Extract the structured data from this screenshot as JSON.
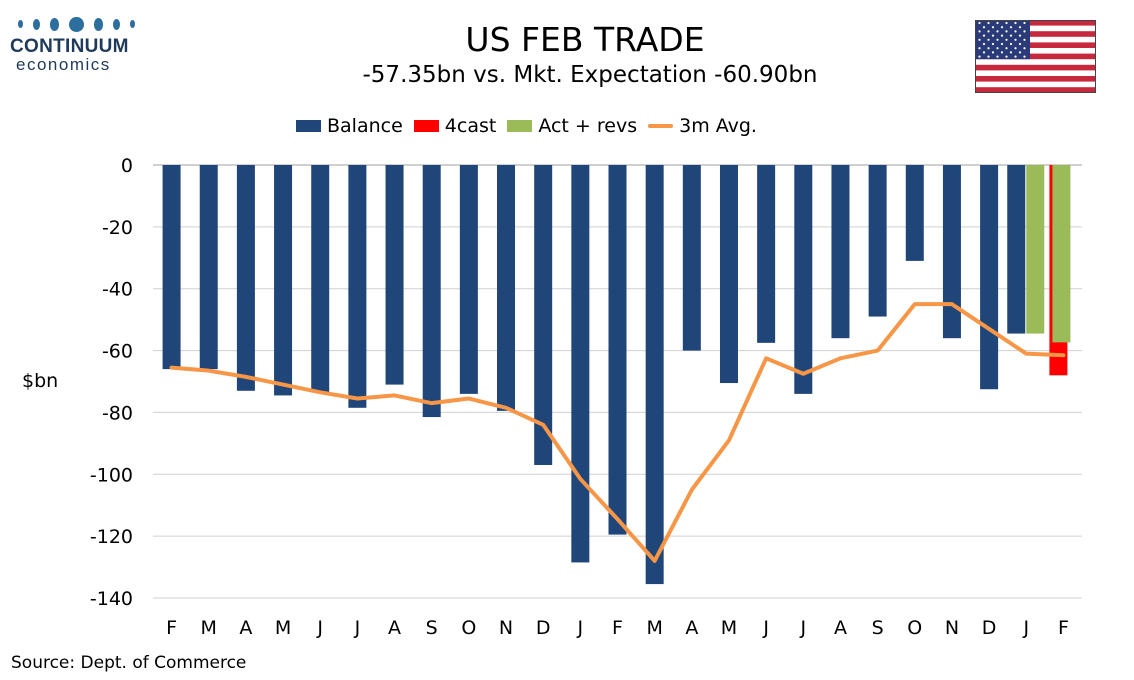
{
  "logo": {
    "name": "CONTINUUM",
    "sub": "economics"
  },
  "header": {
    "title": "US FEB TRADE",
    "subtitle": "-57.35bn vs. Mkt. Expectation -60.90bn"
  },
  "source": "Source: Dept. of Commerce",
  "colors": {
    "balance": "#1f4579",
    "forecast": "#ff0000",
    "actual_revs": "#9bbb59",
    "avg": "#f79646",
    "grid": "#d0d0d0"
  },
  "chart_data": {
    "type": "bar",
    "title": "US FEB TRADE",
    "subtitle": "-57.35bn vs. Mkt. Expectation -60.90bn",
    "xlabel": "",
    "ylabel": "$bn",
    "ylim": [
      -140,
      0
    ],
    "yticks": [
      0,
      -20,
      -40,
      -60,
      -80,
      -100,
      -120,
      -140
    ],
    "grid": true,
    "legend_position": "top-center",
    "categories": [
      "F",
      "M",
      "A",
      "M",
      "J",
      "J",
      "A",
      "S",
      "O",
      "N",
      "D",
      "J",
      "F",
      "M",
      "A",
      "M",
      "J",
      "J",
      "A",
      "S",
      "O",
      "N",
      "D",
      "J",
      "F"
    ],
    "series": [
      {
        "name": "Balance",
        "type": "bar",
        "values": [
          -66,
          -66,
          -73,
          -74.5,
          -73.5,
          -78.5,
          -71,
          -81.5,
          -74,
          -79.5,
          -97,
          -128.5,
          -119.5,
          -135.5,
          -60,
          -70.5,
          -57.5,
          -74,
          -56,
          -49,
          -31,
          -56,
          -72.5,
          -54.5,
          -57.35
        ]
      },
      {
        "name": "4cast",
        "type": "bar",
        "values": [
          null,
          null,
          null,
          null,
          null,
          null,
          null,
          null,
          null,
          null,
          null,
          null,
          null,
          null,
          null,
          null,
          null,
          null,
          null,
          null,
          null,
          null,
          null,
          null,
          -68
        ]
      },
      {
        "name": "Act + revs",
        "type": "bar",
        "values": [
          null,
          null,
          null,
          null,
          null,
          null,
          null,
          null,
          null,
          null,
          null,
          null,
          null,
          null,
          null,
          null,
          null,
          null,
          null,
          null,
          null,
          null,
          null,
          -54.5,
          -57.35
        ]
      },
      {
        "name": "3m Avg.",
        "type": "line",
        "values": [
          -65.5,
          -66.5,
          -68.5,
          -71,
          -73.5,
          -75.5,
          -74.5,
          -77,
          -75.5,
          -78.5,
          -84,
          -101.5,
          -114.5,
          -128,
          -105,
          -89,
          -62.5,
          -67.5,
          -62.5,
          -60,
          -45,
          -45,
          -53,
          -61,
          -61.5
        ]
      }
    ]
  }
}
